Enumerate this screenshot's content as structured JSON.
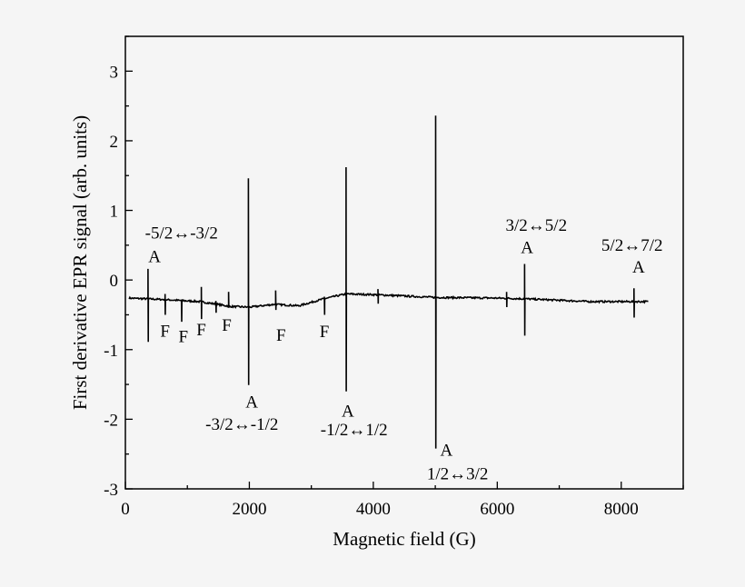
{
  "chart_data": {
    "type": "line",
    "title": "",
    "xlabel": "Magnetic field (G)",
    "ylabel": "First derivative EPR signal (arb. units)",
    "xlim": [
      0,
      9000
    ],
    "ylim": [
      -3,
      3.5
    ],
    "xticks": [
      0,
      2000,
      4000,
      6000,
      8000
    ],
    "yticks": [
      -3,
      -2,
      -1,
      0,
      1,
      2,
      3
    ],
    "grid": false,
    "line_color": "#000000",
    "background": "#f5f5f5",
    "baseline": [
      [
        60,
        -0.26
      ],
      [
        600,
        -0.28
      ],
      [
        1200,
        -0.31
      ],
      [
        1700,
        -0.38
      ],
      [
        2000,
        -0.39
      ],
      [
        2400,
        -0.35
      ],
      [
        2800,
        -0.37
      ],
      [
        3200,
        -0.27
      ],
      [
        3560,
        -0.2
      ],
      [
        4000,
        -0.21
      ],
      [
        5000,
        -0.25
      ],
      [
        6000,
        -0.26
      ],
      [
        6440,
        -0.27
      ],
      [
        7500,
        -0.31
      ],
      [
        8440,
        -0.31
      ]
    ],
    "peaks": [
      {
        "x": 365,
        "max": 0.16,
        "min": -0.89
      },
      {
        "x": 640,
        "max": -0.2,
        "min": -0.5
      },
      {
        "x": 905,
        "max": -0.28,
        "min": -0.6
      },
      {
        "x": 1225,
        "max": -0.1,
        "min": -0.56
      },
      {
        "x": 1460,
        "max": -0.3,
        "min": -0.47
      },
      {
        "x": 1665,
        "max": -0.17,
        "min": -0.4
      },
      {
        "x": 1985,
        "max": 1.46,
        "min": -1.51
      },
      {
        "x": 2425,
        "max": -0.15,
        "min": -0.43
      },
      {
        "x": 3210,
        "max": -0.24,
        "min": -0.5
      },
      {
        "x": 3560,
        "max": 1.62,
        "min": -1.6
      },
      {
        "x": 4075,
        "max": -0.13,
        "min": -0.34
      },
      {
        "x": 5005,
        "max": 2.36,
        "min": -2.42
      },
      {
        "x": 6150,
        "max": -0.17,
        "min": -0.39
      },
      {
        "x": 6440,
        "max": 0.23,
        "min": -0.8
      },
      {
        "x": 8205,
        "max": -0.12,
        "min": -0.54
      }
    ],
    "annotations": [
      {
        "text": "-5/2↔-3/2",
        "x": 905,
        "y": 0.69
      },
      {
        "text": "A",
        "x": 470,
        "y": 0.35
      },
      {
        "text": "F",
        "x": 640,
        "y": -0.72
      },
      {
        "text": "F",
        "x": 935,
        "y": -0.8
      },
      {
        "text": "F",
        "x": 1225,
        "y": -0.7
      },
      {
        "text": "F",
        "x": 1635,
        "y": -0.64
      },
      {
        "text": "F",
        "x": 2510,
        "y": -0.78
      },
      {
        "text": "F",
        "x": 3210,
        "y": -0.73
      },
      {
        "text": "A",
        "x": 2040,
        "y": -1.74
      },
      {
        "text": "-3/2↔-1/2",
        "x": 1880,
        "y": -2.06
      },
      {
        "text": "A",
        "x": 3590,
        "y": -1.87
      },
      {
        "text": "-1/2↔1/2",
        "x": 3690,
        "y": -2.14
      },
      {
        "text": "A",
        "x": 5180,
        "y": -2.43
      },
      {
        "text": "1/2↔3/2",
        "x": 5360,
        "y": -2.77
      },
      {
        "text": "3/2↔5/2",
        "x": 6630,
        "y": 0.8
      },
      {
        "text": "A",
        "x": 6480,
        "y": 0.48
      },
      {
        "text": "5/2↔7/2",
        "x": 8175,
        "y": 0.51
      },
      {
        "text": "A",
        "x": 8280,
        "y": 0.2
      }
    ]
  }
}
